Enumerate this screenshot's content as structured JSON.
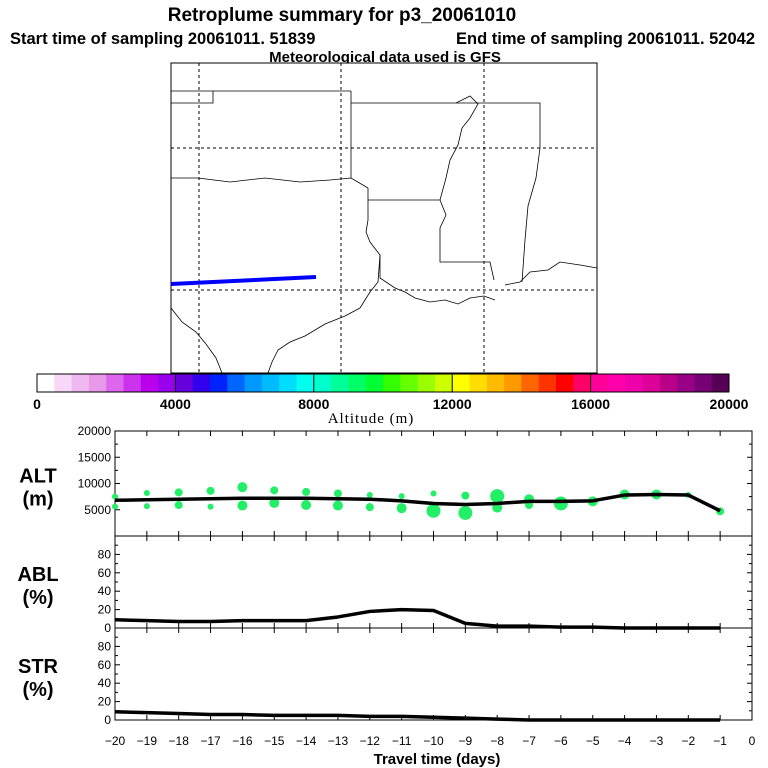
{
  "title": "Retroplume summary for p3_20061010",
  "start_label": "Start time of sampling 20061011. 51839",
  "end_label": "End time of sampling 20061011. 52042",
  "met_label": "Meteorological data used is GFS",
  "colors": {
    "plume": "#0000ff",
    "dots": "#22ee66",
    "line": "#000000"
  },
  "colorbar": {
    "label": "Altitude (m)",
    "ticks": [
      "0",
      "4000",
      "8000",
      "12000",
      "16000",
      "20000"
    ],
    "colors": [
      "#ffffff",
      "#f8d8f8",
      "#f0b8f0",
      "#e898e8",
      "#dd66ee",
      "#cc33ee",
      "#bb00ee",
      "#9900ee",
      "#6600dd",
      "#3300ee",
      "#0022ff",
      "#0066ff",
      "#0099ff",
      "#00bbff",
      "#00ddff",
      "#00ffee",
      "#00ffcc",
      "#00ff99",
      "#00ff66",
      "#00ff33",
      "#33ff00",
      "#66ff00",
      "#99ff00",
      "#ccff00",
      "#ffff00",
      "#ffdd00",
      "#ffbb00",
      "#ff9900",
      "#ff6600",
      "#ff3300",
      "#ff0000",
      "#ff0066",
      "#ff0099",
      "#ff00aa",
      "#ee00aa",
      "#dd0099",
      "#bb0088",
      "#990088",
      "#770077",
      "#550055"
    ]
  },
  "chart_data": [
    {
      "type": "line",
      "panel": "ALT",
      "label_top": "ALT",
      "label_bottom": "(m)",
      "ylim": [
        0,
        20000
      ],
      "yticks": [
        "5000",
        "10000",
        "15000",
        "20000"
      ],
      "ytick_values": [
        5000,
        10000,
        15000,
        20000
      ],
      "x": [
        -20,
        -19,
        -18,
        -17,
        -16,
        -15,
        -14,
        -13,
        -12,
        -11,
        -10,
        -9,
        -8,
        -7,
        -6,
        -5,
        -4,
        -3,
        -2,
        -1
      ],
      "values": [
        6800,
        6900,
        7000,
        7100,
        7200,
        7200,
        7200,
        7100,
        7000,
        6700,
        6200,
        6000,
        6200,
        6600,
        6600,
        6700,
        7800,
        7900,
        7800,
        4800
      ],
      "scatter": [
        {
          "x": -20,
          "y": 7500,
          "s": 3
        },
        {
          "x": -20,
          "y": 5600,
          "s": 3
        },
        {
          "x": -19,
          "y": 8200,
          "s": 3
        },
        {
          "x": -19,
          "y": 5700,
          "s": 3
        },
        {
          "x": -18,
          "y": 8300,
          "s": 4
        },
        {
          "x": -18,
          "y": 5900,
          "s": 4
        },
        {
          "x": -17,
          "y": 8600,
          "s": 4
        },
        {
          "x": -17,
          "y": 5600,
          "s": 3
        },
        {
          "x": -16,
          "y": 9300,
          "s": 5
        },
        {
          "x": -16,
          "y": 5800,
          "s": 5
        },
        {
          "x": -15,
          "y": 8700,
          "s": 4
        },
        {
          "x": -15,
          "y": 6300,
          "s": 5
        },
        {
          "x": -14,
          "y": 8400,
          "s": 4
        },
        {
          "x": -14,
          "y": 5900,
          "s": 5
        },
        {
          "x": -13,
          "y": 8100,
          "s": 4
        },
        {
          "x": -13,
          "y": 5800,
          "s": 5
        },
        {
          "x": -12,
          "y": 7800,
          "s": 3
        },
        {
          "x": -12,
          "y": 5500,
          "s": 4
        },
        {
          "x": -11,
          "y": 7600,
          "s": 3
        },
        {
          "x": -11,
          "y": 5300,
          "s": 5
        },
        {
          "x": -10,
          "y": 8100,
          "s": 3
        },
        {
          "x": -10,
          "y": 4800,
          "s": 7
        },
        {
          "x": -9,
          "y": 7700,
          "s": 4
        },
        {
          "x": -9,
          "y": 4400,
          "s": 7
        },
        {
          "x": -8,
          "y": 7600,
          "s": 7
        },
        {
          "x": -8,
          "y": 5400,
          "s": 5
        },
        {
          "x": -7,
          "y": 7000,
          "s": 5
        },
        {
          "x": -7,
          "y": 5900,
          "s": 4
        },
        {
          "x": -6,
          "y": 6200,
          "s": 7
        },
        {
          "x": -5,
          "y": 6600,
          "s": 5
        },
        {
          "x": -4,
          "y": 7900,
          "s": 5
        },
        {
          "x": -3,
          "y": 7900,
          "s": 5
        },
        {
          "x": -2,
          "y": 7800,
          "s": 3
        },
        {
          "x": -1,
          "y": 4700,
          "s": 4
        }
      ]
    },
    {
      "type": "line",
      "panel": "ABL",
      "label_top": "ABL",
      "label_bottom": "(%)",
      "ylim": [
        0,
        100
      ],
      "yticks": [
        "0",
        "20",
        "40",
        "60",
        "80"
      ],
      "ytick_values": [
        0,
        20,
        40,
        60,
        80
      ],
      "x": [
        -20,
        -19,
        -18,
        -17,
        -16,
        -15,
        -14,
        -13,
        -12,
        -11,
        -10,
        -9,
        -8,
        -7,
        -6,
        -5,
        -4,
        -3,
        -2,
        -1
      ],
      "values": [
        9,
        8,
        7,
        7,
        8,
        8,
        8,
        12,
        18,
        20,
        19,
        5,
        2,
        2,
        1,
        1,
        0,
        0,
        0,
        0
      ]
    },
    {
      "type": "line",
      "panel": "STR",
      "label_top": "STR",
      "label_bottom": "(%)",
      "ylim": [
        0,
        100
      ],
      "yticks": [
        "0",
        "20",
        "40",
        "60",
        "80"
      ],
      "ytick_values": [
        0,
        20,
        40,
        60,
        80
      ],
      "x": [
        -20,
        -19,
        -18,
        -17,
        -16,
        -15,
        -14,
        -13,
        -12,
        -11,
        -10,
        -9,
        -8,
        -7,
        -6,
        -5,
        -4,
        -3,
        -2,
        -1
      ],
      "values": [
        9,
        8,
        7,
        6,
        6,
        5,
        5,
        5,
        4,
        4,
        3,
        2,
        1,
        0,
        0,
        0,
        0,
        0,
        0,
        0
      ]
    }
  ],
  "xaxis": {
    "label": "Travel time (days)",
    "ticks": [
      "−20",
      "−19",
      "−18",
      "−17",
      "−16",
      "−15",
      "−14",
      "−13",
      "−12",
      "−11",
      "−10",
      "−9",
      "−8",
      "−7",
      "−6",
      "−5",
      "−4",
      "−3",
      "−2",
      "−1",
      "0"
    ]
  }
}
